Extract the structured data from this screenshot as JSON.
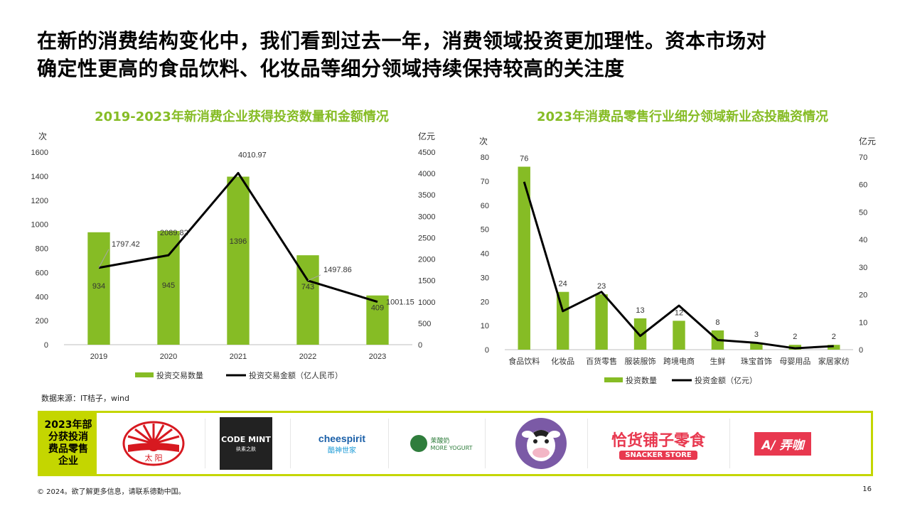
{
  "headline": {
    "line1": "在新的消费结构变化中，我们看到过去一年，消费领域投资更加理性。资本市场对",
    "line2": "确定性更高的食品饮料、化妆品等细分领域持续保持较高的关注度"
  },
  "colors": {
    "accent": "#86bc25",
    "bar": "#86bc25",
    "line": "#000000",
    "band": "#c4d600"
  },
  "source_note": "数据来源：IT桔子，wind",
  "logo_band": {
    "label_lines": [
      "2023年部",
      "分获投消",
      "费品零售",
      "企业"
    ],
    "logos": [
      {
        "name": "sun-logo",
        "text": "太 阳"
      },
      {
        "name": "codemint-logo",
        "text": "CODE MINT",
        "subtext": "纨素之肤"
      },
      {
        "name": "cheespirit-logo",
        "text": "cheespirit",
        "subtext": "酷神世家"
      },
      {
        "name": "more-yogurt-logo",
        "text": "茉酸奶",
        "subtext": "MORE YOGURT"
      },
      {
        "name": "cow-logo",
        "text": ""
      },
      {
        "name": "snacker-store-logo",
        "text": "恰货铺子零食",
        "subtext": "SNACKER STORE"
      },
      {
        "name": "nongka-logo",
        "text": "A/ 弄咖"
      }
    ]
  },
  "footer": {
    "copyright": "© 2024。欲了解更多信息，请联系德勤中国。",
    "page": "16"
  },
  "chart_data": [
    {
      "type": "bar",
      "title": "2019-2023年新消费企业获得投资数量和金额情况",
      "left_axis_unit": "次",
      "right_axis_unit": "亿元",
      "categories": [
        "2019",
        "2020",
        "2021",
        "2022",
        "2023"
      ],
      "ylim": [
        0,
        1600
      ],
      "yticks": [
        0,
        200,
        400,
        600,
        800,
        1000,
        1200,
        1400,
        1600
      ],
      "y2lim": [
        0,
        4500
      ],
      "y2ticks": [
        0,
        500,
        1000,
        1500,
        2000,
        2500,
        3000,
        3500,
        4000,
        4500
      ],
      "series": [
        {
          "name": "投资交易数量",
          "kind": "bar",
          "axis": "left",
          "values": [
            934,
            945,
            1396,
            743,
            409
          ],
          "labels": [
            "934",
            "945",
            "1396",
            "743",
            "409"
          ]
        },
        {
          "name": "投资交易金额（亿人民币）",
          "kind": "line",
          "axis": "right",
          "values": [
            1797.42,
            2089.82,
            4010.97,
            1497.86,
            1001.15
          ],
          "labels": [
            "1797.42",
            "2089.82",
            "4010.97",
            "1497.86",
            "1001.15"
          ]
        }
      ],
      "legend": "bottom"
    },
    {
      "type": "bar",
      "title": "2023年消费品零售行业细分领域新业态投融资情况",
      "left_axis_unit": "次",
      "right_axis_unit": "亿元",
      "categories": [
        "食品饮料",
        "化妆品",
        "百货零售",
        "服装服饰",
        "跨境电商",
        "生鲜",
        "珠宝首饰",
        "母婴用品",
        "家居家纺"
      ],
      "ylim": [
        0,
        80
      ],
      "yticks": [
        0,
        10,
        20,
        30,
        40,
        50,
        60,
        70,
        80
      ],
      "y2lim": [
        0,
        70
      ],
      "y2ticks": [
        0,
        10,
        20,
        30,
        40,
        50,
        60,
        70
      ],
      "series": [
        {
          "name": "投资数量",
          "kind": "bar",
          "axis": "left",
          "values": [
            76,
            24,
            23,
            13,
            12,
            8,
            3,
            2,
            2
          ],
          "labels": [
            "76",
            "24",
            "23",
            "13",
            "12",
            "8",
            "3",
            "2",
            "2"
          ]
        },
        {
          "name": "投资金额（亿元）",
          "kind": "line",
          "axis": "right",
          "values": [
            61,
            14,
            21,
            5,
            16,
            3.5,
            2.5,
            0.5,
            1.3
          ]
        }
      ],
      "legend": "bottom"
    }
  ]
}
